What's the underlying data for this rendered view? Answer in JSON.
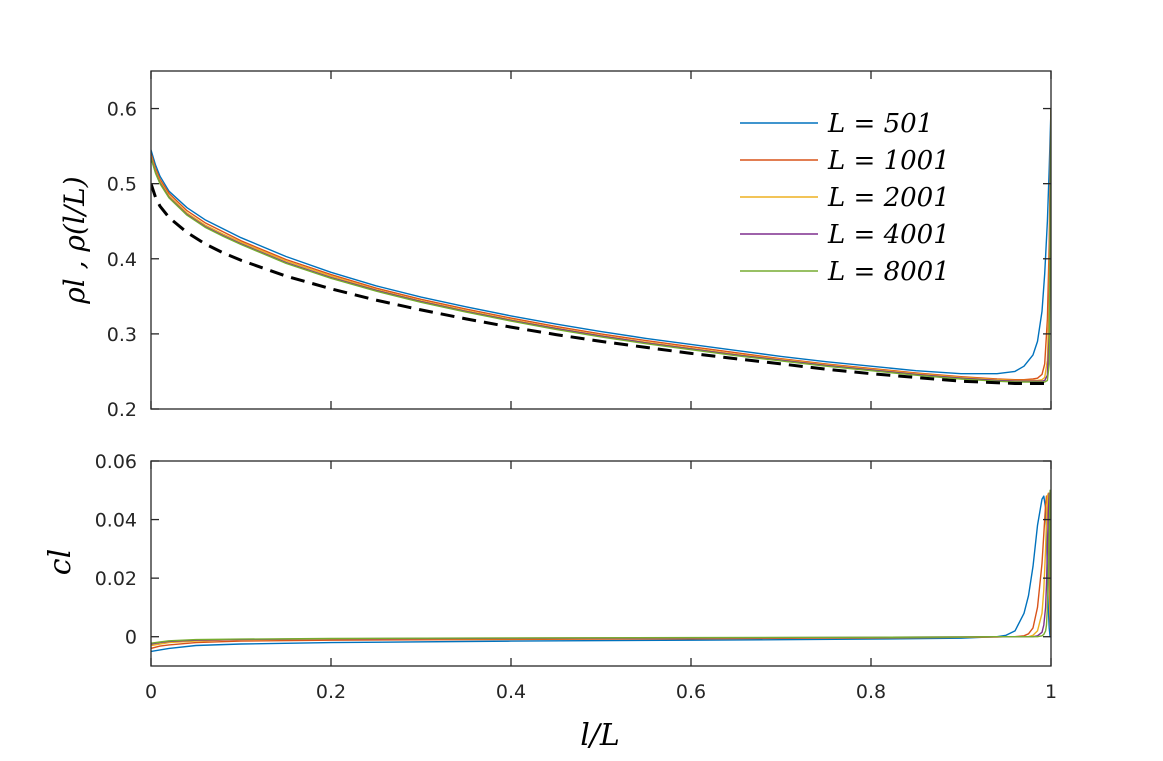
{
  "chart_data": [
    {
      "type": "line",
      "panel": "top",
      "ylabel": "ρl , ρ(l/L)",
      "xlabel": "",
      "xlim": [
        0,
        1
      ],
      "ylim": [
        0.2,
        0.65
      ],
      "xticks": [
        "0",
        "0.2",
        "0.4",
        "0.6",
        "0.8",
        "1"
      ],
      "yticks": [
        "0.2",
        "0.3",
        "0.4",
        "0.5",
        "0.6"
      ],
      "grid": false,
      "legend_position": "top-right",
      "legend": [
        "L = 501",
        "L = 1001",
        "L = 2001",
        "L = 4001",
        "L = 8001"
      ],
      "x": [
        0,
        0.005,
        0.01,
        0.02,
        0.04,
        0.06,
        0.08,
        0.1,
        0.15,
        0.2,
        0.25,
        0.3,
        0.35,
        0.4,
        0.45,
        0.5,
        0.55,
        0.6,
        0.65,
        0.7,
        0.75,
        0.8,
        0.85,
        0.9,
        0.94,
        0.96,
        0.97,
        0.98,
        0.985,
        0.99,
        0.993,
        0.996,
        0.998,
        1.0
      ],
      "series": [
        {
          "name": "L = 501",
          "color": "#0072BD",
          "values": [
            0.545,
            0.525,
            0.51,
            0.49,
            0.468,
            0.452,
            0.44,
            0.428,
            0.403,
            0.382,
            0.364,
            0.349,
            0.336,
            0.324,
            0.313,
            0.303,
            0.294,
            0.286,
            0.278,
            0.27,
            0.263,
            0.257,
            0.251,
            0.247,
            0.247,
            0.25,
            0.257,
            0.272,
            0.29,
            0.33,
            0.38,
            0.45,
            0.52,
            0.6
          ]
        },
        {
          "name": "L = 1001",
          "color": "#D95319",
          "values": [
            0.54,
            0.52,
            0.506,
            0.487,
            0.464,
            0.448,
            0.436,
            0.424,
            0.399,
            0.379,
            0.361,
            0.346,
            0.333,
            0.321,
            0.31,
            0.3,
            0.291,
            0.283,
            0.275,
            0.267,
            0.26,
            0.254,
            0.248,
            0.243,
            0.24,
            0.239,
            0.239,
            0.24,
            0.241,
            0.246,
            0.26,
            0.32,
            0.42,
            0.6
          ]
        },
        {
          "name": "L = 2001",
          "color": "#EDB120",
          "values": [
            0.537,
            0.517,
            0.503,
            0.484,
            0.461,
            0.445,
            0.433,
            0.422,
            0.397,
            0.377,
            0.359,
            0.344,
            0.331,
            0.319,
            0.308,
            0.298,
            0.289,
            0.281,
            0.273,
            0.266,
            0.259,
            0.253,
            0.247,
            0.242,
            0.239,
            0.238,
            0.238,
            0.238,
            0.238,
            0.239,
            0.242,
            0.265,
            0.35,
            0.6
          ]
        },
        {
          "name": "L = 4001",
          "color": "#7E2F8E",
          "values": [
            0.535,
            0.515,
            0.501,
            0.482,
            0.459,
            0.443,
            0.431,
            0.42,
            0.395,
            0.375,
            0.358,
            0.343,
            0.33,
            0.318,
            0.307,
            0.297,
            0.288,
            0.28,
            0.272,
            0.265,
            0.258,
            0.252,
            0.246,
            0.241,
            0.238,
            0.237,
            0.237,
            0.237,
            0.237,
            0.237,
            0.238,
            0.245,
            0.3,
            0.6
          ]
        },
        {
          "name": "L = 8001",
          "color": "#77AC30",
          "values": [
            0.534,
            0.514,
            0.5,
            0.481,
            0.458,
            0.442,
            0.43,
            0.419,
            0.394,
            0.374,
            0.357,
            0.342,
            0.329,
            0.317,
            0.306,
            0.296,
            0.287,
            0.279,
            0.271,
            0.264,
            0.257,
            0.251,
            0.245,
            0.24,
            0.237,
            0.236,
            0.236,
            0.236,
            0.236,
            0.236,
            0.236,
            0.238,
            0.26,
            0.6
          ]
        },
        {
          "name": "ρ(l/L)",
          "color": "#000000",
          "dashed": true,
          "values": [
            0.5,
            0.482,
            0.47,
            0.455,
            0.435,
            0.42,
            0.408,
            0.398,
            0.377,
            0.36,
            0.345,
            0.332,
            0.32,
            0.309,
            0.299,
            0.29,
            0.282,
            0.274,
            0.267,
            0.26,
            0.253,
            0.247,
            0.242,
            0.237,
            0.235,
            0.234,
            0.234,
            0.234,
            0.234,
            0.234,
            0.234,
            0.234,
            0.234,
            0.234
          ]
        }
      ]
    },
    {
      "type": "line",
      "panel": "bottom",
      "ylabel": "cl",
      "xlabel": "l/L",
      "xlim": [
        0,
        1
      ],
      "ylim": [
        -0.01,
        0.06
      ],
      "xticks": [
        "0",
        "0.2",
        "0.4",
        "0.6",
        "0.8",
        "1"
      ],
      "yticks": [
        "0",
        "0.02",
        "0.04",
        "0.06"
      ],
      "grid": false,
      "x": [
        0,
        0.01,
        0.02,
        0.05,
        0.1,
        0.2,
        0.4,
        0.6,
        0.8,
        0.9,
        0.94,
        0.95,
        0.96,
        0.97,
        0.975,
        0.98,
        0.985,
        0.99,
        0.992,
        0.994,
        0.995,
        0.996,
        0.997,
        0.998,
        0.999,
        1.0
      ],
      "series": [
        {
          "name": "L = 501",
          "color": "#0072BD",
          "values": [
            -0.005,
            -0.0045,
            -0.004,
            -0.003,
            -0.0025,
            -0.002,
            -0.0015,
            -0.0012,
            -0.0008,
            -0.0005,
            0.0,
            0.0005,
            0.002,
            0.008,
            0.014,
            0.024,
            0.038,
            0.047,
            0.048,
            0.044,
            0.035,
            0.022,
            0.01,
            0.003,
            0.0,
            0.0
          ]
        },
        {
          "name": "L = 1001",
          "color": "#D95319",
          "values": [
            -0.004,
            -0.0032,
            -0.0028,
            -0.002,
            -0.0015,
            -0.0012,
            -0.0009,
            -0.0007,
            -0.0004,
            -0.0002,
            -0.0001,
            0.0,
            0.0,
            0.0003,
            0.001,
            0.003,
            0.01,
            0.025,
            0.035,
            0.045,
            0.048,
            0.046,
            0.035,
            0.02,
            0.006,
            0.0
          ]
        },
        {
          "name": "L = 2001",
          "color": "#EDB120",
          "values": [
            -0.003,
            -0.0025,
            -0.002,
            -0.0015,
            -0.001,
            -0.0008,
            -0.0006,
            -0.0005,
            -0.0003,
            -0.0002,
            0.0,
            0.0,
            0.0,
            0.0,
            0.0,
            0.0005,
            0.002,
            0.008,
            0.016,
            0.03,
            0.04,
            0.048,
            0.049,
            0.035,
            0.012,
            0.0
          ]
        },
        {
          "name": "L = 4001",
          "color": "#7E2F8E",
          "values": [
            -0.0025,
            -0.002,
            -0.0016,
            -0.0012,
            -0.0009,
            -0.0007,
            -0.0005,
            -0.0004,
            -0.0002,
            -0.0001,
            0.0,
            0.0,
            0.0,
            0.0,
            0.0,
            0.0,
            0.0003,
            0.0015,
            0.004,
            0.01,
            0.018,
            0.03,
            0.042,
            0.049,
            0.025,
            0.0
          ]
        },
        {
          "name": "L = 8001",
          "color": "#77AC30",
          "values": [
            -0.0022,
            -0.0018,
            -0.0014,
            -0.001,
            -0.0008,
            -0.0006,
            -0.0004,
            -0.0003,
            -0.0002,
            -0.0001,
            0.0,
            0.0,
            0.0,
            0.0,
            0.0,
            0.0,
            0.0,
            0.0003,
            0.0008,
            0.002,
            0.004,
            0.01,
            0.02,
            0.035,
            0.05,
            0.0
          ]
        }
      ]
    }
  ]
}
